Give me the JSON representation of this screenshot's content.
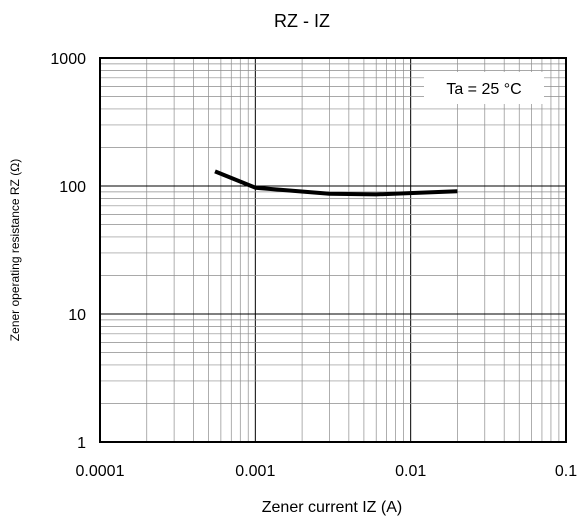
{
  "chart_data": {
    "type": "line",
    "title": "RZ - IZ",
    "xlabel": "Zener current IZ (A)",
    "ylabel": "Zener operating resistance RZ (Ω)",
    "x_scale": "log",
    "y_scale": "log",
    "xlim": [
      0.0001,
      0.1
    ],
    "ylim": [
      1,
      1000
    ],
    "x_ticks": [
      0.0001,
      0.001,
      0.01,
      0.1
    ],
    "x_tick_labels": [
      "0.0001",
      "0.001",
      "0.01",
      "0.1"
    ],
    "y_ticks": [
      1,
      10,
      100,
      1000
    ],
    "y_tick_labels": [
      "1",
      "10",
      "100",
      "1000"
    ],
    "grid": true,
    "annotation": "Ta = 25 °C",
    "annotation_position": "top-right",
    "series": [
      {
        "x": [
          0.00055,
          0.001,
          0.003,
          0.006,
          0.02
        ],
        "y": [
          130,
          97,
          87,
          86,
          91
        ]
      }
    ]
  },
  "colors": {
    "line": "#000000",
    "grid": "#8c8c8c",
    "axes": "#000000"
  }
}
